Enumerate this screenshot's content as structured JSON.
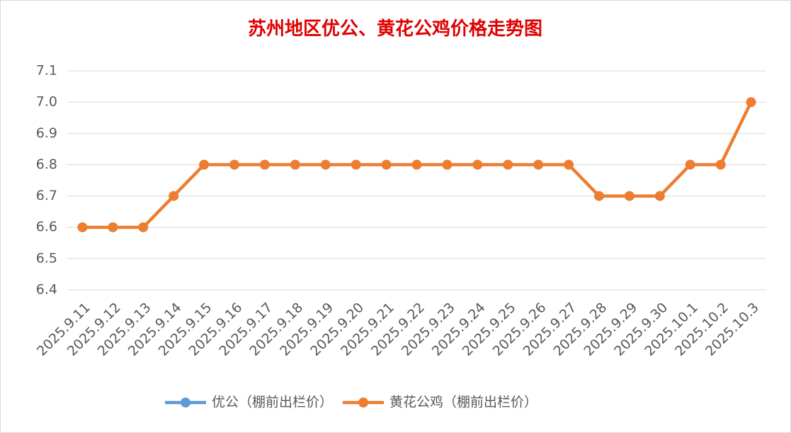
{
  "chart_data": {
    "type": "line",
    "title": "苏州地区优公、黄花公鸡价格走势图",
    "categories": [
      "2025.9.11",
      "2025.9.12",
      "2025.9.13",
      "2025.9.14",
      "2025.9.15",
      "2025.9.16",
      "2025.9.17",
      "2025.9.18",
      "2025.9.19",
      "2025.9.20",
      "2025.9.21",
      "2025.9.22",
      "2025.9.23",
      "2025.9.24",
      "2025.9.25",
      "2025.9.26",
      "2025.9.27",
      "2025.9.28",
      "2025.9.29",
      "2025.9.30",
      "2025.10.1",
      "2025.10.2",
      "2025.10.3"
    ],
    "series": [
      {
        "name": "优公（棚前出栏价）",
        "color": "#5b9bd5",
        "values": [
          null,
          null,
          null,
          null,
          null,
          null,
          null,
          null,
          null,
          null,
          null,
          null,
          null,
          null,
          null,
          null,
          null,
          null,
          null,
          null,
          null,
          null,
          null
        ]
      },
      {
        "name": "黄花公鸡（棚前出栏价）",
        "color": "#ed7d31",
        "values": [
          6.6,
          6.6,
          6.6,
          6.7,
          6.8,
          6.8,
          6.8,
          6.8,
          6.8,
          6.8,
          6.8,
          6.8,
          6.8,
          6.8,
          6.8,
          6.8,
          6.8,
          6.7,
          6.7,
          6.7,
          6.8,
          6.8,
          7.0
        ]
      }
    ],
    "ylim": [
      6.4,
      7.1
    ],
    "yticks": [
      6.4,
      6.5,
      6.6,
      6.7,
      6.8,
      6.9,
      {
        "value": 7,
        "label": "7.0"
      },
      7.1
    ],
    "grid": true,
    "legend": "bottom"
  }
}
